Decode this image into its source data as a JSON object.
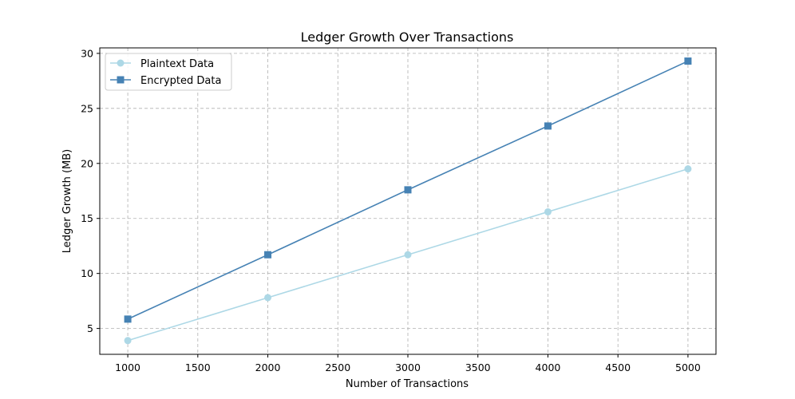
{
  "chart_data": {
    "type": "line",
    "title": "Ledger Growth Over Transactions",
    "xlabel": "Number of Transactions",
    "ylabel": "Ledger Growth (MB)",
    "x": [
      1000,
      2000,
      3000,
      4000,
      5000
    ],
    "xlim": [
      800,
      5200
    ],
    "ylim": [
      2.65,
      30.5
    ],
    "xticks": [
      1000,
      1500,
      2000,
      2500,
      3000,
      3500,
      4000,
      4500,
      5000
    ],
    "yticks": [
      5,
      10,
      15,
      20,
      25,
      30
    ],
    "grid": true,
    "legend_position": "top-left",
    "series": [
      {
        "name": "Plaintext Data",
        "values": [
          3.9,
          7.8,
          11.7,
          15.6,
          19.5
        ],
        "color": "#add8e6",
        "marker": "circle"
      },
      {
        "name": "Encrypted Data",
        "values": [
          5.85,
          11.7,
          17.6,
          23.4,
          29.3
        ],
        "color": "#4682b4",
        "marker": "square"
      }
    ]
  }
}
